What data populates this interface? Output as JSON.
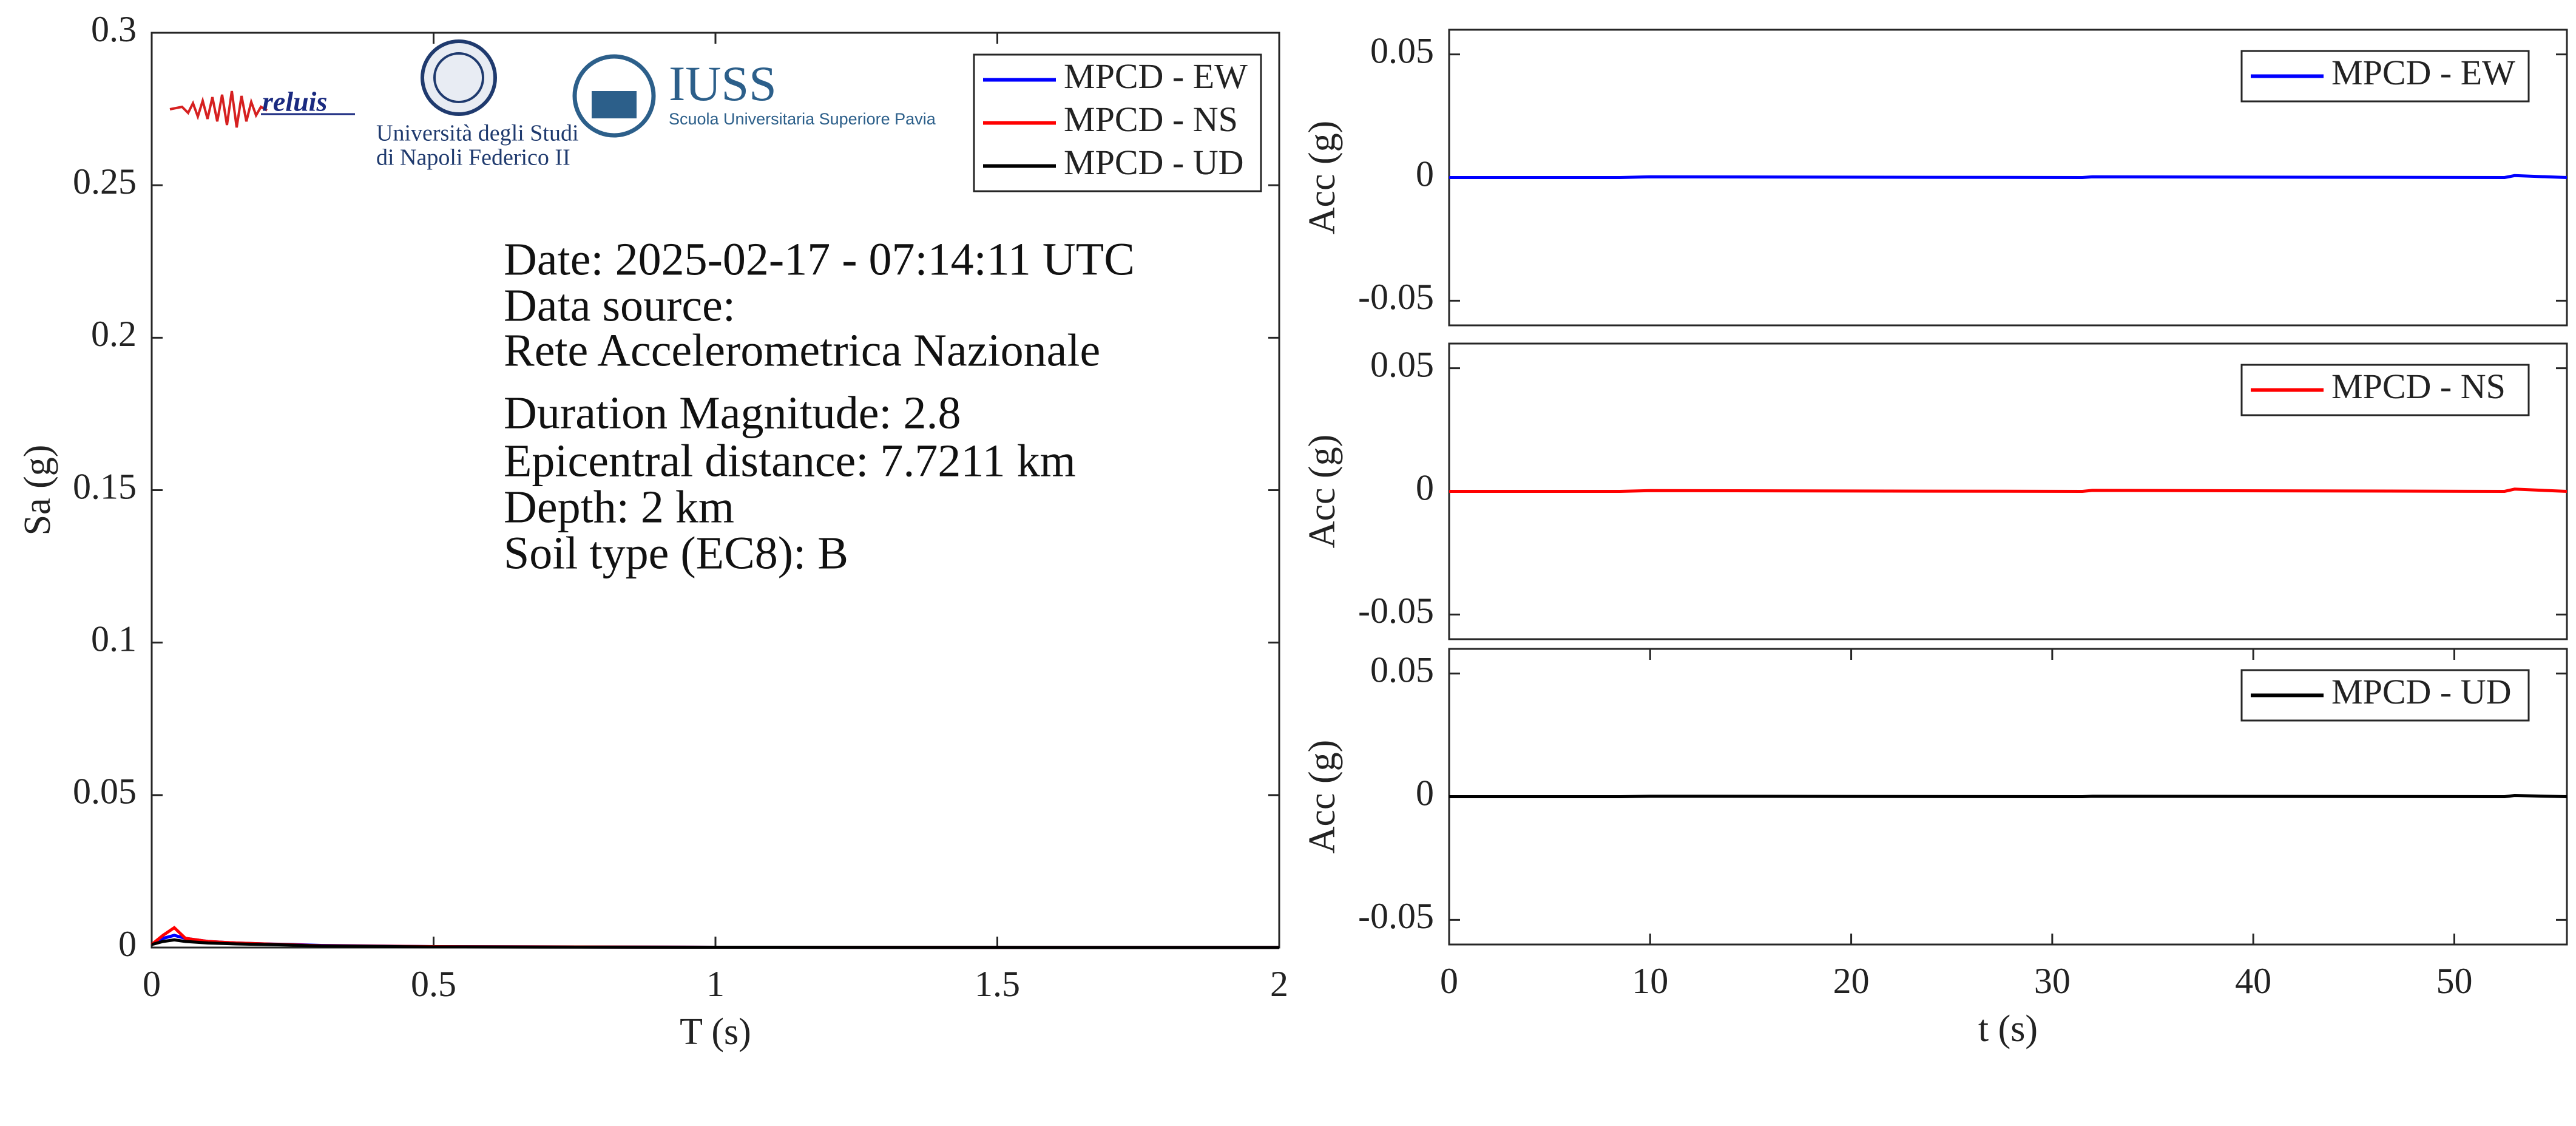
{
  "chart_data": [
    {
      "type": "line",
      "xlabel": "T (s)",
      "ylabel": "Sa (g)",
      "x": [
        0,
        0.02,
        0.04,
        0.06,
        0.1,
        0.15,
        0.2,
        0.25,
        0.3,
        0.5,
        1,
        1.5,
        2
      ],
      "series": [
        {
          "name": "MPCD - EW",
          "color": "#0000ff",
          "values": [
            0.001,
            0.003,
            0.004,
            0.003,
            0.002,
            0.0015,
            0.0012,
            0.001,
            0.0007,
            0.0003,
            0.0001,
            5e-05,
            3e-05
          ]
        },
        {
          "name": "MPCD - NS",
          "color": "#ff0000",
          "values": [
            0.001,
            0.004,
            0.0065,
            0.003,
            0.002,
            0.0015,
            0.0012,
            0.0009,
            0.0006,
            0.0003,
            0.0001,
            5e-05,
            3e-05
          ]
        },
        {
          "name": "MPCD - UD",
          "color": "#000000",
          "values": [
            0.001,
            0.002,
            0.0025,
            0.002,
            0.0015,
            0.0012,
            0.001,
            0.0008,
            0.0005,
            0.0002,
            0.0001,
            4e-05,
            2e-05
          ]
        }
      ],
      "xlim": [
        0,
        2
      ],
      "ylim": [
        0,
        0.3
      ],
      "xticks": [
        0,
        0.5,
        1,
        1.5,
        2
      ],
      "yticks": [
        0,
        0.05,
        0.1,
        0.15,
        0.2,
        0.25,
        0.3
      ],
      "legend": "upper right",
      "annotations": [
        "Date: 2025-02-17 - 07:14:11 UTC",
        "Data source:",
        "Rete Accelerometrica Nazionale",
        "Duration Magnitude: 2.8",
        "Epicentral distance: 7.7211 km",
        "Depth: 2 km",
        "Soil type (EC8): B"
      ],
      "logos": [
        "reluis",
        "Università degli Studi",
        "di Napoli Federico II",
        "IUSS",
        "Scuola Universitaria Superiore Pavia"
      ]
    },
    {
      "type": "line",
      "ylabel": "Acc (g)",
      "x": [
        0,
        8.5,
        10,
        31.5,
        32,
        52.5,
        53,
        55.6
      ],
      "series": [
        {
          "name": "MPCD - EW",
          "color": "#0000ff",
          "values": [
            0,
            0,
            0.0003,
            0,
            0.0003,
            0,
            0.0008,
            0
          ]
        }
      ],
      "xlim": [
        0,
        55.6
      ],
      "ylim": [
        -0.06,
        0.06
      ],
      "yticks": [
        -0.05,
        0,
        0.05
      ],
      "legend": "upper right"
    },
    {
      "type": "line",
      "ylabel": "Acc (g)",
      "x": [
        0,
        8.5,
        10,
        31.5,
        32,
        52.5,
        53,
        55.6
      ],
      "series": [
        {
          "name": "MPCD - NS",
          "color": "#ff0000",
          "values": [
            0,
            0,
            0.0003,
            0,
            0.0004,
            0,
            0.0009,
            0
          ]
        }
      ],
      "xlim": [
        0,
        55.6
      ],
      "ylim": [
        -0.06,
        0.06
      ],
      "yticks": [
        -0.05,
        0,
        0.05
      ],
      "legend": "upper right"
    },
    {
      "type": "line",
      "xlabel": "t (s)",
      "ylabel": "Acc (g)",
      "x": [
        0,
        8.5,
        10,
        31.5,
        32,
        52.5,
        53,
        55.6
      ],
      "series": [
        {
          "name": "MPCD - UD",
          "color": "#000000",
          "values": [
            0,
            0,
            0.0002,
            0,
            0.0002,
            0,
            0.0005,
            0
          ]
        }
      ],
      "xlim": [
        0,
        55.6
      ],
      "ylim": [
        -0.06,
        0.06
      ],
      "xticks": [
        0,
        10,
        20,
        30,
        40,
        50
      ],
      "yticks": [
        -0.05,
        0,
        0.05
      ],
      "legend": "upper right"
    }
  ]
}
